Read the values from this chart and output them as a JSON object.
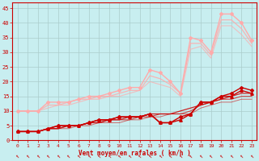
{
  "bg_color": "#c8eef0",
  "grid_color": "#aacccc",
  "xlabel": "Vent moyen/en rafales ( km/h )",
  "xlabel_color": "#cc0000",
  "tick_color": "#cc0000",
  "xlim": [
    -0.5,
    23.5
  ],
  "ylim": [
    0,
    47
  ],
  "yticks": [
    0,
    5,
    10,
    15,
    20,
    25,
    30,
    35,
    40,
    45
  ],
  "xticks": [
    0,
    1,
    2,
    3,
    4,
    5,
    6,
    7,
    8,
    9,
    10,
    11,
    12,
    13,
    14,
    15,
    16,
    17,
    18,
    19,
    20,
    21,
    22,
    23
  ],
  "series": [
    {
      "name": "pink_max",
      "x": [
        0,
        1,
        2,
        3,
        4,
        5,
        6,
        7,
        8,
        9,
        10,
        11,
        12,
        13,
        14,
        15,
        16,
        17,
        18,
        19,
        20,
        21,
        22,
        23
      ],
      "y": [
        10,
        10,
        10,
        13,
        13,
        13,
        14,
        15,
        15,
        16,
        17,
        18,
        18,
        24,
        23,
        20,
        16,
        35,
        34,
        30,
        43,
        43,
        40,
        34
      ],
      "color": "#ffaaaa",
      "lw": 1.0,
      "marker": "D",
      "ms": 2.0,
      "alpha": 1.0,
      "zorder": 3
    },
    {
      "name": "pink_line1",
      "x": [
        0,
        1,
        2,
        3,
        4,
        5,
        6,
        7,
        8,
        9,
        10,
        11,
        12,
        13,
        14,
        15,
        16,
        17,
        18,
        19,
        20,
        21,
        22,
        23
      ],
      "y": [
        10,
        10,
        10,
        12,
        12,
        13,
        14,
        14,
        15,
        15,
        16,
        17,
        17,
        22,
        21,
        19,
        16,
        33,
        33,
        29,
        41,
        41,
        38,
        33
      ],
      "color": "#ffaaaa",
      "lw": 0.9,
      "marker": "None",
      "ms": 0,
      "alpha": 0.85,
      "zorder": 2
    },
    {
      "name": "pink_line2",
      "x": [
        0,
        1,
        2,
        3,
        4,
        5,
        6,
        7,
        8,
        9,
        10,
        11,
        12,
        13,
        14,
        15,
        16,
        17,
        18,
        19,
        20,
        21,
        22,
        23
      ],
      "y": [
        10,
        10,
        10,
        11,
        12,
        12,
        13,
        14,
        14,
        15,
        15,
        16,
        17,
        20,
        19,
        18,
        15,
        31,
        32,
        28,
        39,
        39,
        36,
        32
      ],
      "color": "#ffaaaa",
      "lw": 0.8,
      "marker": "None",
      "ms": 0,
      "alpha": 0.7,
      "zorder": 2
    },
    {
      "name": "red_diamond",
      "x": [
        0,
        1,
        2,
        3,
        4,
        5,
        6,
        7,
        8,
        9,
        10,
        11,
        12,
        13,
        14,
        15,
        16,
        17,
        18,
        19,
        20,
        21,
        22,
        23
      ],
      "y": [
        3,
        3,
        3,
        4,
        5,
        5,
        5,
        6,
        7,
        7,
        8,
        8,
        8,
        9,
        6,
        6,
        8,
        9,
        13,
        13,
        15,
        16,
        18,
        17
      ],
      "color": "#cc0000",
      "lw": 1.0,
      "marker": "D",
      "ms": 2.0,
      "alpha": 1.0,
      "zorder": 4
    },
    {
      "name": "red_triangle",
      "x": [
        0,
        1,
        2,
        3,
        4,
        5,
        6,
        7,
        8,
        9,
        10,
        11,
        12,
        13,
        14,
        15,
        16,
        17,
        18,
        19,
        20,
        21,
        22,
        23
      ],
      "y": [
        3,
        3,
        3,
        4,
        5,
        5,
        5,
        6,
        7,
        7,
        8,
        8,
        8,
        9,
        6,
        6,
        7,
        9,
        13,
        13,
        15,
        15,
        17,
        16
      ],
      "color": "#cc0000",
      "lw": 1.0,
      "marker": "^",
      "ms": 2.5,
      "alpha": 1.0,
      "zorder": 4
    },
    {
      "name": "red_line1",
      "x": [
        0,
        1,
        2,
        3,
        4,
        5,
        6,
        7,
        8,
        9,
        10,
        11,
        12,
        13,
        14,
        15,
        16,
        17,
        18,
        19,
        20,
        21,
        22,
        23
      ],
      "y": [
        3,
        3,
        3,
        4,
        4,
        5,
        5,
        6,
        6,
        7,
        7,
        8,
        8,
        9,
        9,
        9,
        10,
        11,
        12,
        13,
        14,
        15,
        16,
        16
      ],
      "color": "#cc0000",
      "lw": 0.9,
      "marker": "None",
      "ms": 0,
      "alpha": 0.85,
      "zorder": 3
    },
    {
      "name": "red_line2",
      "x": [
        0,
        1,
        2,
        3,
        4,
        5,
        6,
        7,
        8,
        9,
        10,
        11,
        12,
        13,
        14,
        15,
        16,
        17,
        18,
        19,
        20,
        21,
        22,
        23
      ],
      "y": [
        3,
        3,
        3,
        4,
        4,
        5,
        5,
        6,
        6,
        7,
        7,
        7,
        8,
        8,
        9,
        9,
        9,
        10,
        12,
        13,
        14,
        14,
        15,
        15
      ],
      "color": "#cc0000",
      "lw": 0.8,
      "marker": "None",
      "ms": 0,
      "alpha": 0.7,
      "zorder": 3
    },
    {
      "name": "red_line3",
      "x": [
        0,
        1,
        2,
        3,
        4,
        5,
        6,
        7,
        8,
        9,
        10,
        11,
        12,
        13,
        14,
        15,
        16,
        17,
        18,
        19,
        20,
        21,
        22,
        23
      ],
      "y": [
        3,
        3,
        3,
        4,
        4,
        4,
        5,
        5,
        6,
        6,
        6,
        7,
        7,
        8,
        8,
        9,
        9,
        9,
        11,
        12,
        13,
        13,
        14,
        14
      ],
      "color": "#cc0000",
      "lw": 0.7,
      "marker": "None",
      "ms": 0,
      "alpha": 0.55,
      "zorder": 3
    }
  ],
  "arrow_color": "#cc0000",
  "arrow_char": "←"
}
